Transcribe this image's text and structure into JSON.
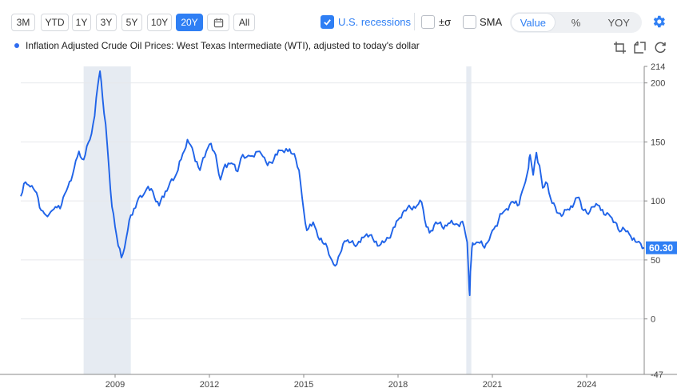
{
  "toolbar": {
    "ranges": [
      "3M",
      "YTD",
      "1Y",
      "3Y",
      "5Y",
      "10Y",
      "20Y"
    ],
    "active_range": "20Y",
    "all_label": "All",
    "recessions_label": "U.S. recessions",
    "sigma_label": "±σ",
    "sma_label": "SMA",
    "modes": [
      "Value",
      "%",
      "YOY"
    ],
    "active_mode": "Value"
  },
  "legend": {
    "series_name": "Inflation Adjusted Crude Oil Prices: West Texas Intermediate (WTI), adjusted to today's dollar"
  },
  "colors": {
    "accent": "#2f7ff4",
    "line": "#1f63e8",
    "recession": "#e6ebf2"
  },
  "chart_data": {
    "type": "line",
    "title": "Inflation Adjusted Crude Oil Prices: West Texas Intermediate (WTI), adjusted to today's dollar",
    "xlabel": "",
    "ylabel": "",
    "xlim": [
      2006.0,
      2025.83
    ],
    "ylim": [
      -47,
      214
    ],
    "x_ticks": [
      2009,
      2012,
      2015,
      2018,
      2021,
      2024
    ],
    "y_ticks": [
      -47,
      0,
      50,
      100,
      150,
      200,
      214
    ],
    "grid": true,
    "last_value_label": "60.30",
    "recessions": [
      [
        2008.0,
        2009.5
      ],
      [
        2020.17,
        2020.33
      ]
    ],
    "series": [
      {
        "name": "WTI (inflation adjusted)",
        "x": [
          2006.0,
          2006.15,
          2006.3,
          2006.5,
          2006.65,
          2006.8,
          2007.0,
          2007.1,
          2007.3,
          2007.5,
          2007.7,
          2007.85,
          2008.0,
          2008.2,
          2008.35,
          2008.45,
          2008.52,
          2008.6,
          2008.7,
          2008.8,
          2008.9,
          2009.0,
          2009.1,
          2009.2,
          2009.35,
          2009.5,
          2009.7,
          2009.9,
          2010.0,
          2010.2,
          2010.4,
          2010.5,
          2010.7,
          2010.9,
          2011.0,
          2011.15,
          2011.3,
          2011.5,
          2011.7,
          2011.9,
          2012.0,
          2012.2,
          2012.35,
          2012.5,
          2012.7,
          2012.9,
          2013.0,
          2013.3,
          2013.6,
          2013.8,
          2014.0,
          2014.2,
          2014.5,
          2014.7,
          2014.85,
          2015.0,
          2015.1,
          2015.3,
          2015.5,
          2015.7,
          2015.85,
          2016.0,
          2016.15,
          2016.3,
          2016.5,
          2016.7,
          2016.9,
          2017.0,
          2017.2,
          2017.4,
          2017.6,
          2017.8,
          2018.0,
          2018.2,
          2018.4,
          2018.6,
          2018.75,
          2018.9,
          2019.0,
          2019.2,
          2019.4,
          2019.6,
          2019.8,
          2020.0,
          2020.1,
          2020.2,
          2020.25,
          2020.28,
          2020.3,
          2020.35,
          2020.4,
          2020.5,
          2020.7,
          2020.9,
          2021.0,
          2021.2,
          2021.4,
          2021.6,
          2021.8,
          2021.9,
          2022.0,
          2022.15,
          2022.2,
          2022.3,
          2022.4,
          2022.5,
          2022.6,
          2022.7,
          2022.8,
          2022.9,
          2023.0,
          2023.2,
          2023.4,
          2023.6,
          2023.75,
          2023.9,
          2024.0,
          2024.2,
          2024.4,
          2024.6,
          2024.75,
          2024.9,
          2025.0,
          2025.2,
          2025.4,
          2025.6,
          2025.83
        ],
        "values": [
          104,
          116,
          112,
          107,
          92,
          88,
          92,
          95,
          97,
          112,
          128,
          142,
          135,
          152,
          172,
          198,
          210,
          188,
          165,
          130,
          95,
          78,
          62,
          52,
          68,
          88,
          99,
          105,
          110,
          108,
          96,
          104,
          112,
          120,
          126,
          140,
          152,
          140,
          126,
          142,
          148,
          139,
          118,
          131,
          132,
          125,
          136,
          138,
          142,
          133,
          132,
          143,
          142,
          140,
          126,
          92,
          75,
          82,
          67,
          64,
          52,
          45,
          55,
          66,
          65,
          63,
          69,
          72,
          68,
          62,
          66,
          73,
          84,
          92,
          94,
          96,
          99,
          78,
          73,
          82,
          78,
          81,
          80,
          82,
          78,
          65,
          35,
          20,
          40,
          60,
          63,
          65,
          62,
          67,
          75,
          84,
          92,
          99,
          96,
          104,
          112,
          128,
          139,
          122,
          141,
          130,
          111,
          116,
          107,
          98,
          95,
          87,
          93,
          98,
          103,
          92,
          90,
          95,
          96,
          88,
          87,
          82,
          76,
          76,
          70,
          65,
          60.3
        ]
      }
    ]
  }
}
